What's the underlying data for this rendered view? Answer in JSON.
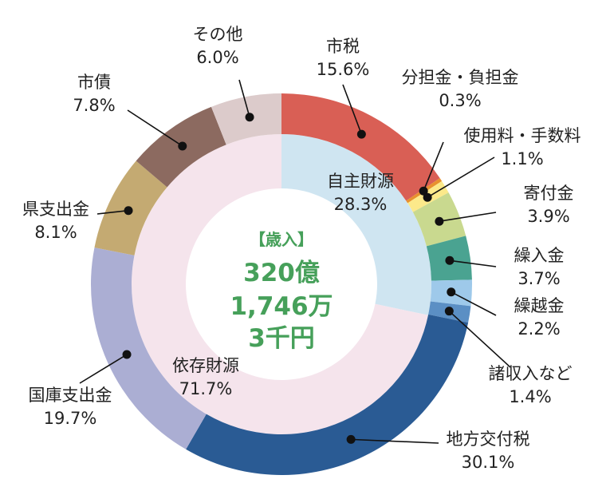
{
  "chart_data": {
    "type": "pie",
    "subtype": "double-donut",
    "title": "【歳入】",
    "center_total": [
      "320億",
      "1,746万",
      "3千円"
    ],
    "outer": [
      {
        "name": "市税",
        "value": 15.6,
        "label": "15.6%",
        "color": "#d95f55"
      },
      {
        "name": "分担金・負担金",
        "value": 0.3,
        "label": "0.3%",
        "color": "#e8912e"
      },
      {
        "name": "使用料・手数料",
        "value": 1.1,
        "label": "1.1%",
        "color": "#fce98a"
      },
      {
        "name": "寄付金",
        "value": 3.9,
        "label": "3.9%",
        "color": "#c9d98f"
      },
      {
        "name": "繰入金",
        "value": 3.7,
        "label": "3.7%",
        "color": "#4aa391"
      },
      {
        "name": "繰越金",
        "value": 2.2,
        "label": "2.2%",
        "color": "#9ec9ea"
      },
      {
        "name": "諸収入など",
        "value": 1.4,
        "label": "1.4%",
        "color": "#5b8fc4"
      },
      {
        "name": "地方交付税",
        "value": 30.1,
        "label": "30.1%",
        "color": "#2a5b94"
      },
      {
        "name": "国庫支出金",
        "value": 19.7,
        "label": "19.7%",
        "color": "#abaed3"
      },
      {
        "name": "県支出金",
        "value": 8.1,
        "label": "8.1%",
        "color": "#c4aa72"
      },
      {
        "name": "市債",
        "value": 7.8,
        "label": "7.8%",
        "color": "#8c6a60"
      },
      {
        "name": "その他",
        "value": 6.0,
        "label": "6.0%",
        "color": "#dccbcb"
      }
    ],
    "inner": [
      {
        "name": "自主財源",
        "value": 28.3,
        "label": "28.3%",
        "color": "#cfe5f1"
      },
      {
        "name": "依存財源",
        "value": 71.7,
        "label": "71.7%",
        "color": "#f5e4ec"
      }
    ],
    "unit": "%"
  }
}
